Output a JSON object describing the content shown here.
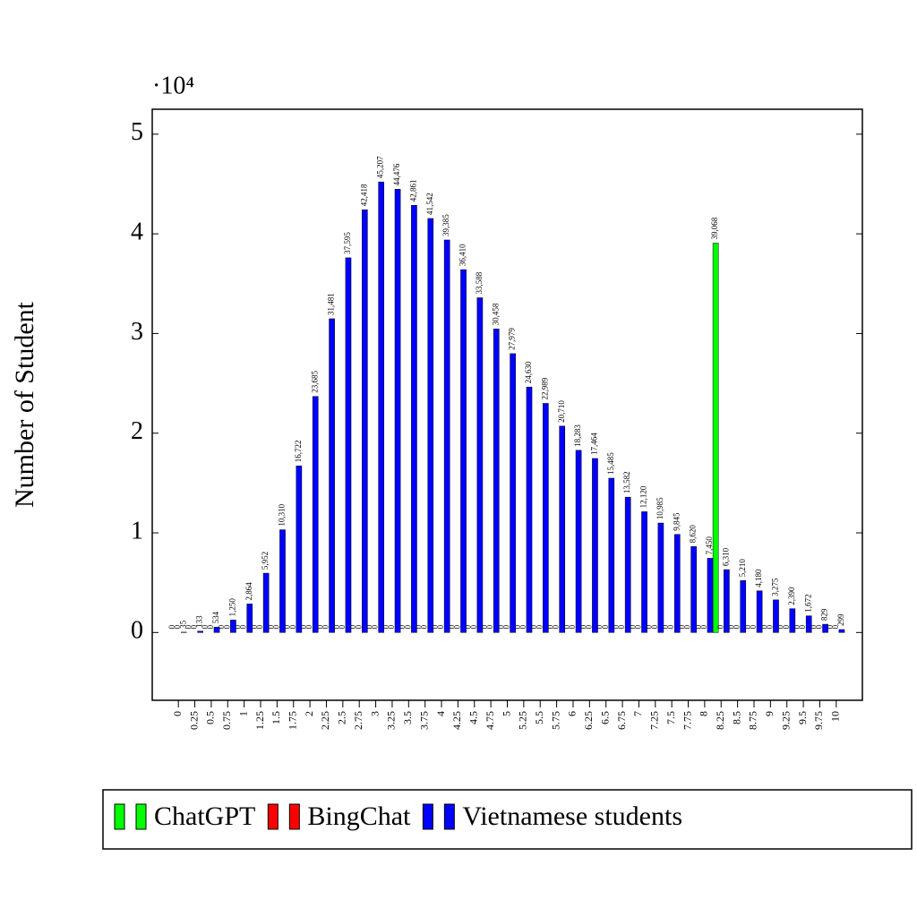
{
  "chart_data": {
    "type": "bar",
    "y_label": "Number of Student",
    "y_multiplier": "·10⁴",
    "categories": [
      "0",
      "0.25",
      "0.5",
      "0.75",
      "1",
      "1.25",
      "1.5",
      "1.75",
      "2",
      "2.25",
      "2.5",
      "2.75",
      "3",
      "3.25",
      "3.5",
      "3.75",
      "4",
      "4.25",
      "4.5",
      "4.75",
      "5",
      "5.25",
      "5.5",
      "5.75",
      "6",
      "6.25",
      "6.5",
      "6.75",
      "7",
      "7.25",
      "7.5",
      "7.75",
      "8",
      "8.25",
      "8.5",
      "8.75",
      "9",
      "9.25",
      "9.5",
      "9.75",
      "10"
    ],
    "series": [
      {
        "name": "ChatGPT",
        "color": "#00ff00",
        "values": [
          0,
          0,
          0,
          0,
          0,
          0,
          0,
          0,
          0,
          0,
          0,
          0,
          0,
          0,
          0,
          0,
          0,
          0,
          0,
          0,
          0,
          0,
          0,
          0,
          0,
          0,
          0,
          0,
          0,
          0,
          0,
          0,
          0,
          39068,
          0,
          0,
          0,
          0,
          0,
          0,
          0
        ],
        "value_labels": [
          "0",
          "0",
          "0",
          "0",
          "0",
          "0",
          "0",
          "0",
          "0",
          "0",
          "0",
          "0",
          "0",
          "0",
          "0",
          "0",
          "0",
          "0",
          "0",
          "0",
          "0",
          "0",
          "0",
          "0",
          "0",
          "0",
          "0",
          "0",
          "0",
          "0",
          "0",
          "0",
          "0",
          "39,068",
          "0",
          "0",
          "0",
          "0",
          "0",
          "0",
          "0"
        ]
      },
      {
        "name": "BingChat",
        "color": "#ff0000",
        "values": [
          0,
          0,
          0,
          0,
          0,
          0,
          0,
          0,
          0,
          0,
          0,
          0,
          0,
          0,
          0,
          0,
          0,
          0,
          0,
          0,
          0,
          0,
          0,
          0,
          0,
          0,
          0,
          0,
          0,
          0,
          0,
          0,
          0,
          0,
          0,
          0,
          0,
          0,
          0,
          0,
          0
        ]
      },
      {
        "name": "Vietnamese students",
        "color": "#0000ff",
        "values": [
          35,
          133,
          534,
          1250,
          2864,
          5952,
          10310,
          16722,
          23685,
          31481,
          37595,
          42418,
          45207,
          44476,
          42861,
          41542,
          39385,
          36410,
          33588,
          30458,
          27979,
          24630,
          22989,
          20710,
          18283,
          17464,
          15485,
          13582,
          12120,
          10985,
          9845,
          8620,
          7450,
          6310,
          5210,
          4180,
          3275,
          2390,
          1672,
          829,
          299
        ],
        "value_labels": [
          "35",
          "133",
          "534",
          "1,250",
          "2,864",
          "5,952",
          "10,310",
          "16,722",
          "23,685",
          "31,481",
          "37,595",
          "42,418",
          "45,207",
          "44,476",
          "42,861",
          "41,542",
          "39,385",
          "36,410",
          "33,588",
          "30,458",
          "27,979",
          "24,630",
          "22,989",
          "20,710",
          "18,283",
          "17,464",
          "15,485",
          "13,582",
          "12,120",
          "10,985",
          "9,845",
          "8,620",
          "7,450",
          "6,310",
          "5,210",
          "4,180",
          "3,275",
          "2,390",
          "1,672",
          "829",
          "299"
        ]
      }
    ],
    "ylim": [
      -6800,
      52500
    ],
    "yticks": [
      {
        "value": 0,
        "label": "0"
      },
      {
        "value": 10000,
        "label": "1"
      },
      {
        "value": 20000,
        "label": "2"
      },
      {
        "value": 30000,
        "label": "3"
      },
      {
        "value": 40000,
        "label": "4"
      },
      {
        "value": 50000,
        "label": "5"
      }
    ],
    "legend": "bottom"
  }
}
